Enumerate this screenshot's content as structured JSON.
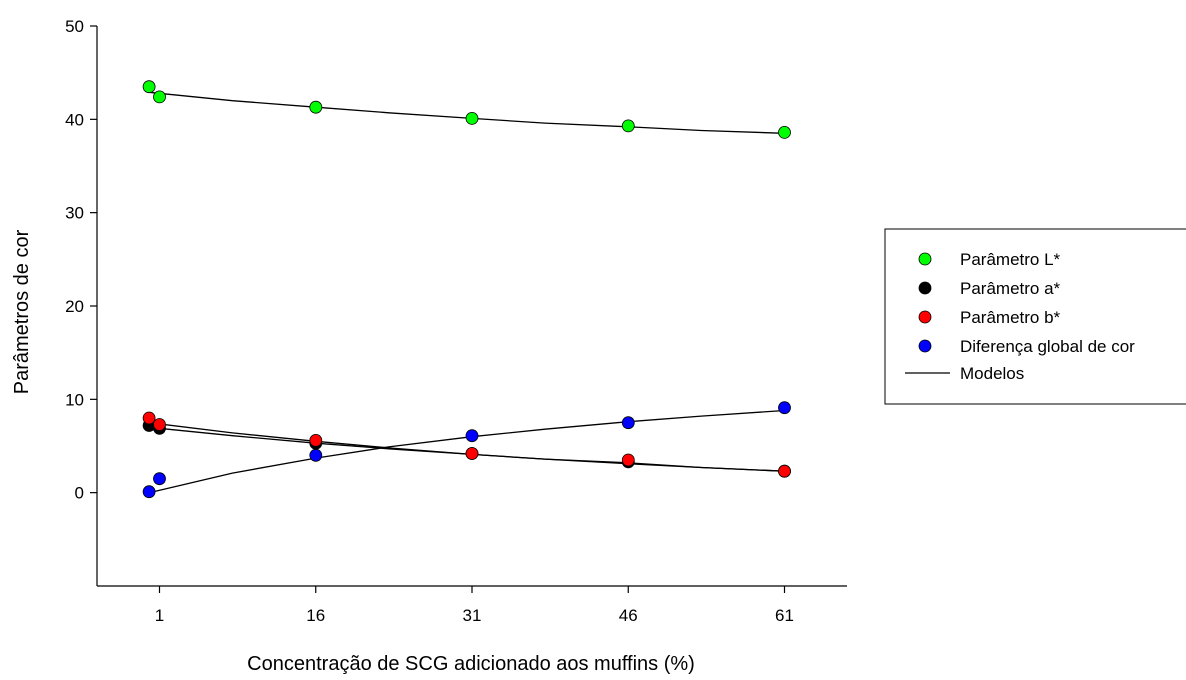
{
  "chart_data": {
    "type": "scatter",
    "title": "",
    "xlabel": "Concentração de SCG adicionado aos muffins (%)",
    "ylabel": "Parâmetros de cor",
    "xlim": [
      -5,
      67
    ],
    "ylim": [
      -10,
      50
    ],
    "xticks": [
      1,
      16,
      31,
      46,
      61
    ],
    "yticks": [
      0,
      10,
      20,
      30,
      40,
      50
    ],
    "grid": false,
    "legend_position": "right",
    "series": [
      {
        "name": "Parâmetro L*",
        "color": "#00ff00",
        "points": [
          [
            0,
            43.5
          ],
          [
            1,
            42.4
          ],
          [
            16,
            41.3
          ],
          [
            31,
            40.1
          ],
          [
            46,
            39.3
          ],
          [
            61,
            38.6
          ]
        ],
        "model": [
          [
            0,
            42.9
          ],
          [
            8,
            42.0
          ],
          [
            16,
            41.3
          ],
          [
            23,
            40.7
          ],
          [
            31,
            40.1
          ],
          [
            38,
            39.6
          ],
          [
            46,
            39.2
          ],
          [
            53,
            38.8
          ],
          [
            61,
            38.5
          ]
        ]
      },
      {
        "name": "Parâmetro a*",
        "color": "#000000",
        "points": [
          [
            0,
            7.2
          ],
          [
            1,
            6.9
          ],
          [
            16,
            5.3
          ],
          [
            31,
            4.2
          ],
          [
            46,
            3.3
          ],
          [
            61,
            2.3
          ]
        ],
        "model": [
          [
            0,
            7.0
          ],
          [
            8,
            6.1
          ],
          [
            16,
            5.3
          ],
          [
            23,
            4.7
          ],
          [
            31,
            4.1
          ],
          [
            38,
            3.6
          ],
          [
            46,
            3.2
          ],
          [
            53,
            2.7
          ],
          [
            61,
            2.3
          ]
        ]
      },
      {
        "name": "Parâmetro b*",
        "color": "#ff0000",
        "points": [
          [
            0,
            8.0
          ],
          [
            1,
            7.3
          ],
          [
            16,
            5.6
          ],
          [
            31,
            4.2
          ],
          [
            46,
            3.5
          ],
          [
            61,
            2.3
          ]
        ],
        "model": [
          [
            0,
            7.5
          ],
          [
            8,
            6.4
          ],
          [
            16,
            5.5
          ],
          [
            23,
            4.8
          ],
          [
            31,
            4.1
          ],
          [
            38,
            3.6
          ],
          [
            46,
            3.1
          ],
          [
            53,
            2.7
          ],
          [
            61,
            2.3
          ]
        ]
      },
      {
        "name": "Diferença global de cor",
        "color": "#0000ff",
        "points": [
          [
            0,
            0.1
          ],
          [
            1,
            1.5
          ],
          [
            16,
            4.0
          ],
          [
            31,
            6.1
          ],
          [
            46,
            7.5
          ],
          [
            61,
            9.1
          ]
        ],
        "model": [
          [
            0,
            0.0
          ],
          [
            8,
            2.1
          ],
          [
            16,
            3.7
          ],
          [
            23,
            4.9
          ],
          [
            31,
            6.0
          ],
          [
            38,
            6.8
          ],
          [
            46,
            7.6
          ],
          [
            53,
            8.2
          ],
          [
            61,
            8.8
          ]
        ]
      }
    ],
    "model_legend_label": "Modelos"
  }
}
